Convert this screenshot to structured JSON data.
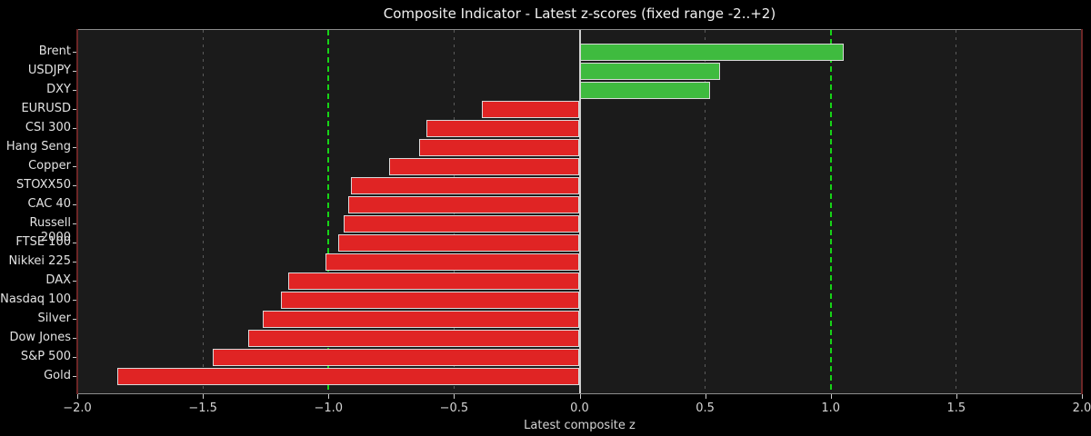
{
  "title": "Composite Indicator - Latest z-scores (fixed range -2..+2)",
  "xlabel": "Latest composite z",
  "chart_data": {
    "type": "bar",
    "orientation": "horizontal",
    "categories": [
      "Brent",
      "USDJPY",
      "DXY",
      "EURUSD",
      "CSI 300",
      "Hang Seng",
      "Copper",
      "STOXX50",
      "CAC 40",
      "Russell 2000",
      "FTSE 100",
      "Nikkei 225",
      "DAX",
      "Nasdaq 100",
      "Silver",
      "Dow Jones",
      "S&P 500",
      "Gold"
    ],
    "values": [
      1.05,
      0.56,
      0.52,
      -0.39,
      -0.61,
      -0.64,
      -0.76,
      -0.91,
      -0.92,
      -0.94,
      -0.96,
      -1.01,
      -1.16,
      -1.19,
      -1.26,
      -1.32,
      -1.46,
      -1.84
    ],
    "title": "Composite Indicator - Latest z-scores (fixed range -2..+2)",
    "xlabel": "Latest composite z",
    "ylabel": "",
    "xlim": [
      -2.0,
      2.0
    ],
    "x_ticks": [
      -2.0,
      -1.5,
      -1.0,
      -0.5,
      0.0,
      0.5,
      1.0,
      1.5,
      2.0
    ],
    "x_tick_labels": [
      "−2.0",
      "−1.5",
      "−1.0",
      "−0.5",
      "0.0",
      "0.5",
      "1.0",
      "1.5",
      "2.0"
    ],
    "threshold_lines": [
      -1.0,
      1.0
    ],
    "zero_line": 0.0,
    "grid": true,
    "legend_position": "none"
  },
  "colors": {
    "figure_bg": "#000000",
    "plot_bg": "#1b1b1b",
    "bar_positive": "#3fbb3f",
    "bar_negative": "#e02424",
    "bar_edge": "#d9d9d9",
    "gridline": "#5b5b5b",
    "threshold_green": "#17d417",
    "zero_line": "#cfcfcf",
    "spine_left_right": "#6b2626",
    "spine_top_bottom": "#8c8c8c",
    "title_text": "#f1f1f1",
    "tick_text": "#d4d4d4"
  }
}
